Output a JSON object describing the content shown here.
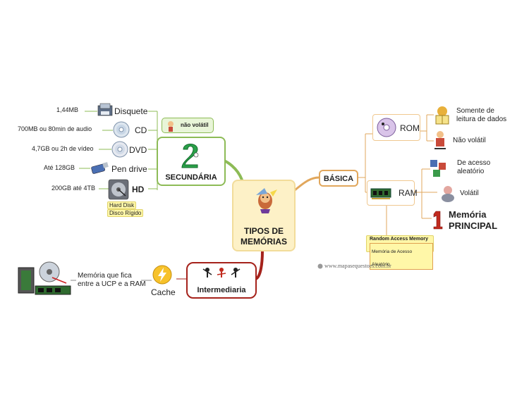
{
  "center": {
    "line1": "TIPOS DE",
    "line2": "MEMÓRIAS"
  },
  "secundaria": {
    "title": "SECUNDÁRIA",
    "badge": "não volátil",
    "items": [
      {
        "name": "Disquete",
        "capacity": "1,44MB"
      },
      {
        "name": "CD",
        "capacity": "700MB ou 80min de audio"
      },
      {
        "name": "DVD",
        "capacity": "4,7GB ou 2h de vídeo"
      },
      {
        "name": "Pen drive",
        "capacity": "Até 128GB"
      },
      {
        "name": "HD",
        "capacity": "200GB até 4TB"
      }
    ],
    "hd_tag1": "Hard Disk",
    "hd_tag2": "Disco Rígido"
  },
  "intermediaria": {
    "title": "Intermediaria",
    "cache_label": "Cache",
    "cache_desc_line1": "Memória que fica",
    "cache_desc_line2": "entre a UCP e a RAM"
  },
  "basica": {
    "title": "BÁSICA",
    "rom": {
      "label": "ROM",
      "desc1_line1": "Somente de",
      "desc1_line2": "leitura de dados",
      "desc2": "Não volátil"
    },
    "ram": {
      "label": "RAM",
      "desc1_line1": "De acesso",
      "desc1_line2": "aleatório",
      "desc2": "Volátil",
      "principal_line1": "Memória",
      "principal_line2": "PRINCIPAL",
      "tag_en": "Random Access Memory",
      "tag_pt": "Memória de Acesso Aleatório"
    }
  },
  "watermark": "www.mapasequestoes.com.br",
  "colors": {
    "secundaria": "#8dbb56",
    "intermediaria": "#a5221b",
    "basica": "#e1a75c",
    "center": "#fdf1c7"
  }
}
